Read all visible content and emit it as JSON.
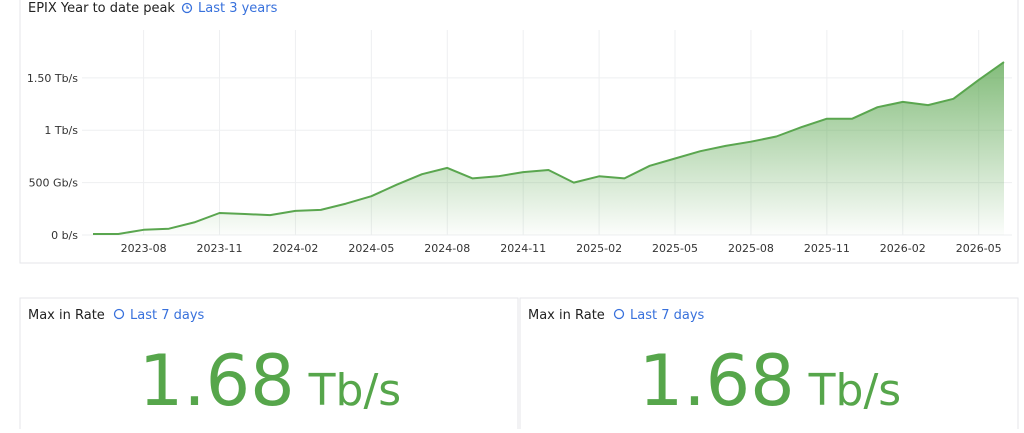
{
  "dashboard_panel": {
    "title": "EPIX Year to date peak",
    "time_range": "Last 3 years"
  },
  "chart_data": {
    "type": "area",
    "x": [
      "2023-06",
      "2023-07",
      "2023-08",
      "2023-09",
      "2023-10",
      "2023-11",
      "2023-12",
      "2024-01",
      "2024-02",
      "2024-03",
      "2024-04",
      "2024-05",
      "2024-06",
      "2024-07",
      "2024-08",
      "2024-09",
      "2024-10",
      "2024-11",
      "2024-12",
      "2025-01",
      "2025-02",
      "2025-03",
      "2025-04",
      "2025-05",
      "2025-06",
      "2025-07",
      "2025-08",
      "2025-09",
      "2025-10",
      "2025-11",
      "2025-12",
      "2026-01",
      "2026-02",
      "2026-03",
      "2026-04",
      "2026-05",
      "2026-06"
    ],
    "series": [
      {
        "color": "#5aa64f",
        "values": [
          0.01,
          0.01,
          0.05,
          0.06,
          0.12,
          0.21,
          0.2,
          0.19,
          0.23,
          0.24,
          0.3,
          0.37,
          0.48,
          0.58,
          0.64,
          0.54,
          0.56,
          0.6,
          0.62,
          0.5,
          0.56,
          0.54,
          0.66,
          0.73,
          0.8,
          0.85,
          0.89,
          0.94,
          1.03,
          1.11,
          1.11,
          1.22,
          1.27,
          1.24,
          1.3,
          1.48,
          1.65
        ]
      }
    ],
    "xlim": [
      "2023-06",
      "2026-06"
    ],
    "xticks": [
      "2023-08",
      "2023-11",
      "2024-02",
      "2024-05",
      "2024-08",
      "2024-11",
      "2025-02",
      "2025-05",
      "2025-08",
      "2025-11",
      "2026-02",
      "2026-05"
    ],
    "ylim": [
      0,
      1.88
    ],
    "yticks": [
      {
        "value": 0,
        "label": "0 b/s"
      },
      {
        "value": 0.5,
        "label": "500 Gb/s"
      },
      {
        "value": 1,
        "label": "1 Tb/s"
      },
      {
        "value": 1.5,
        "label": "1.50 Tb/s"
      }
    ],
    "grid": true
  },
  "stats": [
    {
      "title": "Max in Rate",
      "time_range": "Last 7 days",
      "value": 1.68,
      "unit": "Tb/s"
    },
    {
      "title": "Max in Rate",
      "time_range": "Last 7 days",
      "value": 1.68,
      "unit": "Tb/s"
    }
  ]
}
